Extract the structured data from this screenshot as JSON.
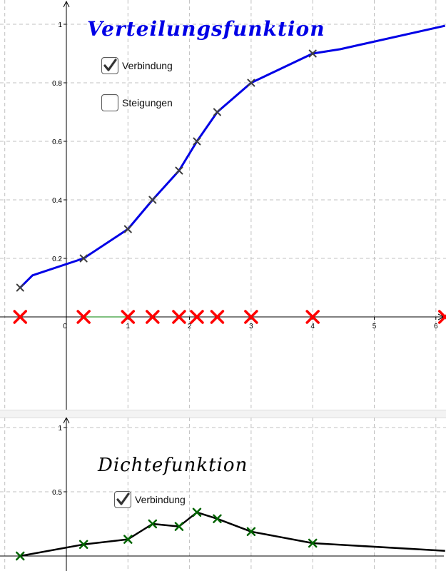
{
  "colors": {
    "cdf_line": "#0000e6",
    "cdf_marker": "#404040",
    "sample_marker": "#ff0000",
    "pdf_line": "#000000",
    "pdf_marker": "#006400",
    "grid": "#c0c0c0",
    "axis": "#000000",
    "title_top": "#0000e6",
    "title_bottom": "#000000"
  },
  "top_panel": {
    "title": "Verteilungsfunktion",
    "checkboxes": [
      {
        "label": "Verbindung",
        "checked": true
      },
      {
        "label": "Steigungen",
        "checked": false
      }
    ]
  },
  "bottom_panel": {
    "title": "Dichtefunktion",
    "checkboxes": [
      {
        "label": "Verbindung",
        "checked": true
      }
    ]
  },
  "chart_data": [
    {
      "type": "line",
      "title": "Verteilungsfunktion",
      "xlabel": "",
      "ylabel": "",
      "xlim": [
        -1.1,
        6.15
      ],
      "ylim": [
        0,
        1.08
      ],
      "xticks": [
        0,
        1,
        2,
        3,
        4,
        5,
        6
      ],
      "xtick_labels": [
        "0",
        "1",
        "2",
        "3",
        "4",
        "5",
        "6"
      ],
      "yticks": [
        0.2,
        0.4,
        0.6,
        0.8,
        1
      ],
      "ytick_labels": [
        "0.2",
        "0.4",
        "0.6",
        "0.8",
        "1"
      ],
      "grid": true,
      "series": [
        {
          "x": [
            -0.75,
            -0.55,
            0.28,
            1.0,
            1.4,
            1.83,
            2.12,
            2.45,
            3.0,
            4.0,
            4.45,
            6.15
          ],
          "y": [
            0.1,
            0.142,
            0.2,
            0.3,
            0.4,
            0.5,
            0.6,
            0.7,
            0.8,
            0.9,
            0.915,
            0.995
          ],
          "marker_x": [
            -0.75,
            0.28,
            1.0,
            1.4,
            1.83,
            2.12,
            2.45,
            3.0,
            4.0
          ],
          "marker_y": [
            0.1,
            0.2,
            0.3,
            0.4,
            0.5,
            0.6,
            0.7,
            0.8,
            0.9
          ]
        }
      ],
      "sample_points": [
        -0.75,
        0.28,
        1.0,
        1.4,
        1.83,
        2.12,
        2.45,
        3.0,
        4.0,
        6.15
      ]
    },
    {
      "type": "line",
      "title": "Dichtefunktion",
      "xlabel": "",
      "ylabel": "",
      "xlim": [
        -1.1,
        6.15
      ],
      "ylim": [
        0,
        1.05
      ],
      "yticks": [
        0.5,
        1
      ],
      "ytick_labels": [
        "0.5",
        "1"
      ],
      "grid": true,
      "series": [
        {
          "x": [
            -0.75,
            0.28,
            1.0,
            1.4,
            1.83,
            2.12,
            2.45,
            3.0,
            4.0,
            6.15
          ],
          "y": [
            0.0,
            0.09,
            0.13,
            0.25,
            0.23,
            0.34,
            0.29,
            0.19,
            0.1,
            0.04
          ],
          "marker_x": [
            -0.75,
            0.28,
            1.0,
            1.4,
            1.83,
            2.12,
            2.45,
            3.0,
            4.0
          ],
          "marker_y": [
            0.0,
            0.09,
            0.13,
            0.25,
            0.23,
            0.34,
            0.29,
            0.19,
            0.1
          ]
        }
      ]
    }
  ]
}
